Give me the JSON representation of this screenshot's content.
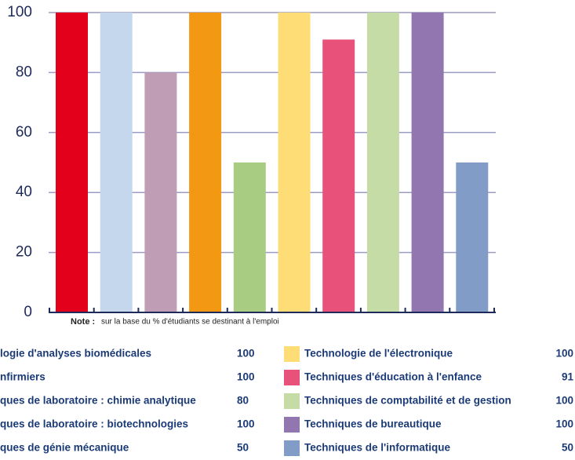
{
  "chart_data": {
    "type": "bar",
    "note_label": "Note :",
    "note": "sur la base du % d'étudiants se destinant à l'emploi",
    "categories": [
      "logie d'analyses biomédicales",
      "nfirmiers",
      "ques de laboratoire : chimie analytique",
      "ques de laboratoire : biotechnologies",
      "ques de génie mécanique",
      "Technologie de l'électronique",
      "Techniques d'éducation à l'enfance",
      "Techniques de comptabilité et de gestion",
      "Techniques de bureautique",
      "Techniques de l'informatique"
    ],
    "values": [
      100,
      100,
      80,
      100,
      50,
      100,
      91,
      100,
      100,
      50
    ],
    "colors": [
      "#e2001a",
      "#c5d7ec",
      "#be9db5",
      "#f39813",
      "#a8cd82",
      "#fedc76",
      "#e8527a",
      "#c6dca7",
      "#9276b0",
      "#819dc7"
    ],
    "ylim": [
      0,
      100
    ],
    "yticks": [
      0,
      20,
      40,
      60,
      80,
      100
    ],
    "grid": true
  }
}
